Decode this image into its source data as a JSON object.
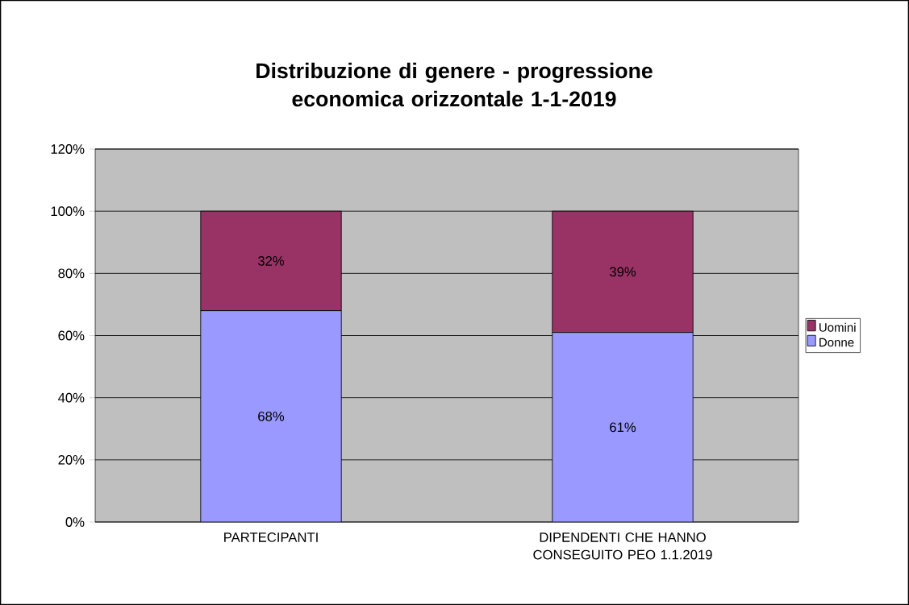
{
  "chart_data": {
    "type": "bar",
    "title": "Distribuzione di genere - progressione economica orizzontale 1-1-2019",
    "categories": [
      "PARTECIPANTI",
      "DIPENDENTI CHE HANNO CONSEGUITO PEO 1.1.2019"
    ],
    "stacked": true,
    "series": [
      {
        "name": "Donne",
        "color": "#9999ff",
        "values": [
          68,
          61
        ],
        "value_labels": [
          "68%",
          "61%"
        ]
      },
      {
        "name": "Uomini",
        "color": "#993366",
        "values": [
          32,
          39
        ],
        "value_labels": [
          "32%",
          "39%"
        ]
      }
    ],
    "ylim": [
      0,
      120
    ],
    "yticks": [
      {
        "value": 0,
        "label": "0%"
      },
      {
        "value": 20,
        "label": "20%"
      },
      {
        "value": 40,
        "label": "40%"
      },
      {
        "value": 60,
        "label": "60%"
      },
      {
        "value": 80,
        "label": "80%"
      },
      {
        "value": 100,
        "label": "100%"
      },
      {
        "value": 120,
        "label": "120%"
      }
    ],
    "grid": "y",
    "legend": "right"
  }
}
